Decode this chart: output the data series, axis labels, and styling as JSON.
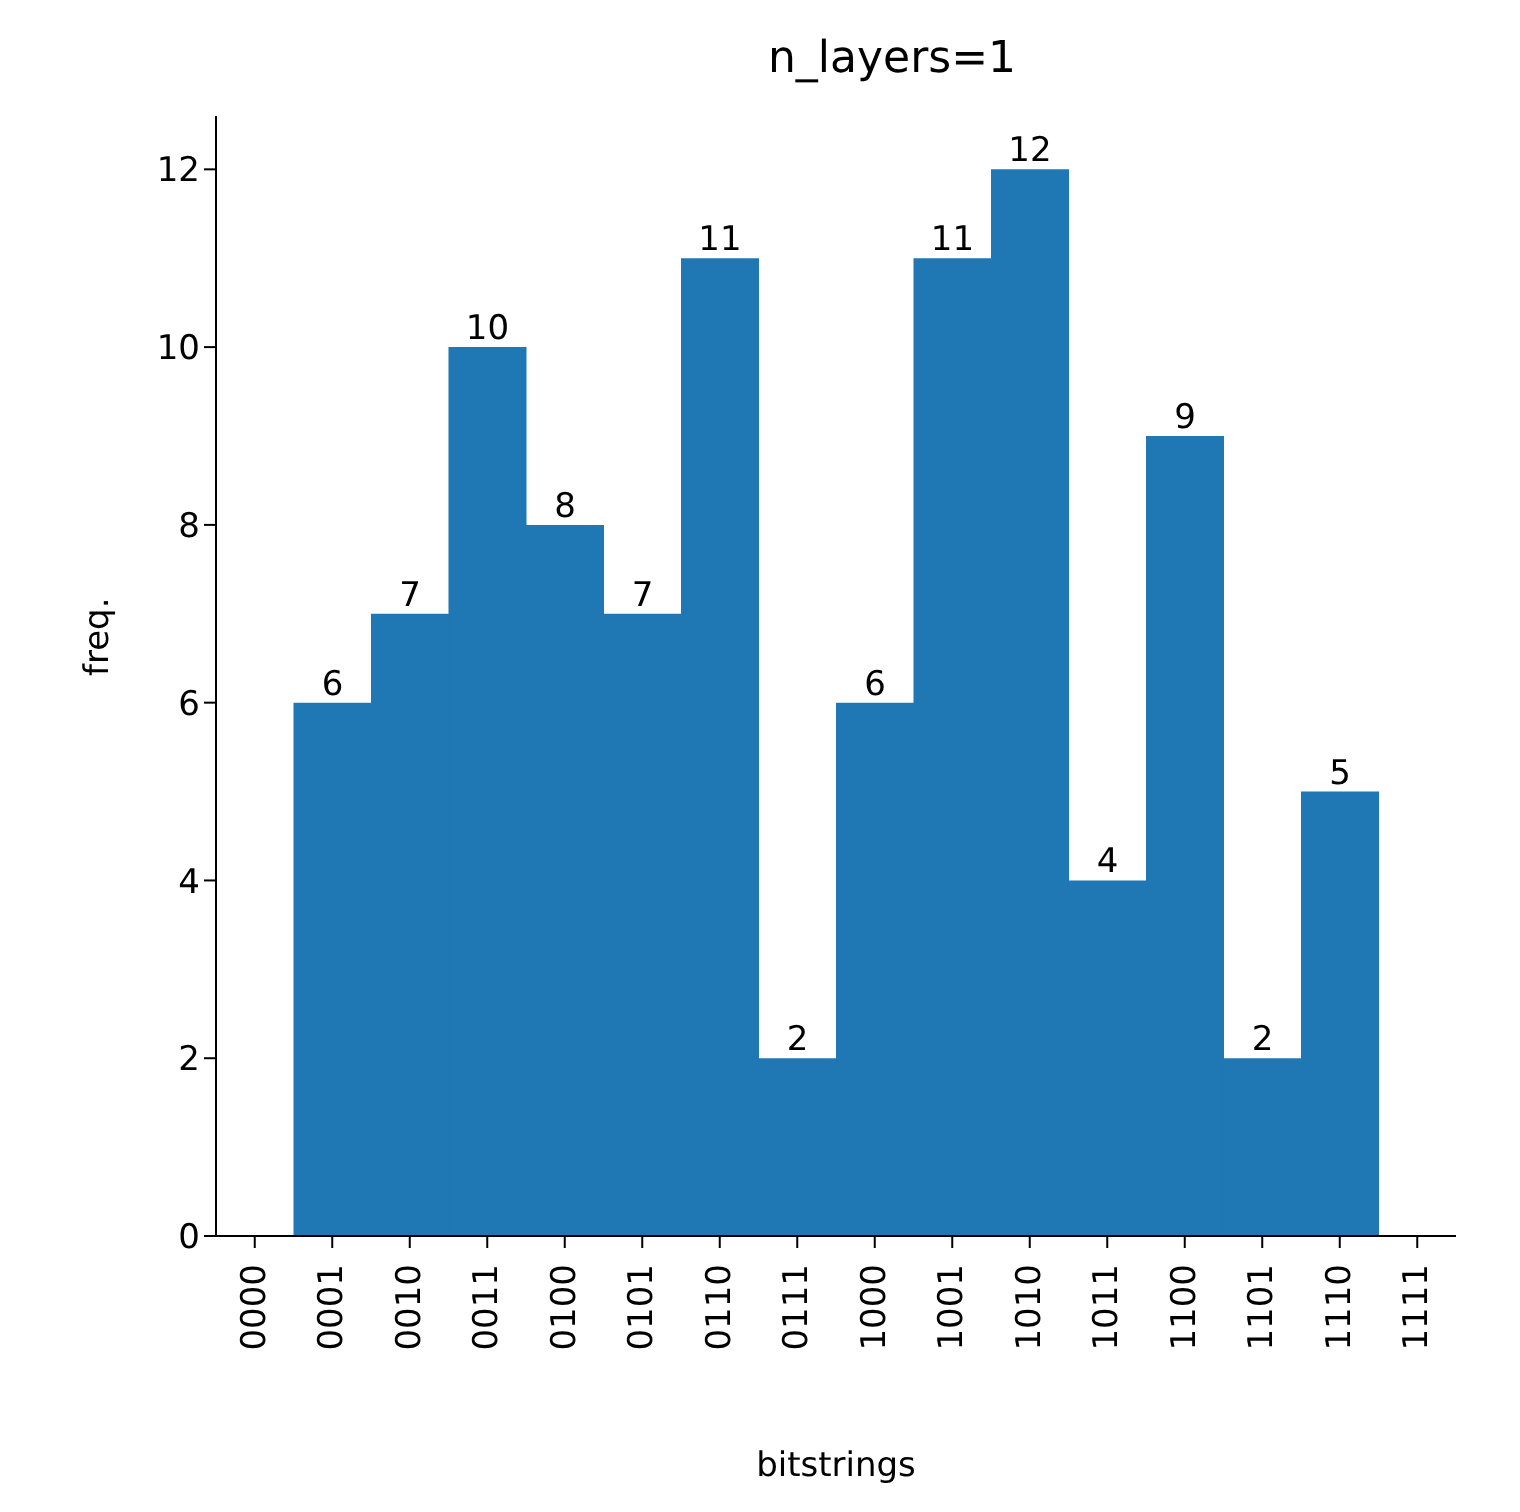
{
  "chart_data": {
    "type": "bar",
    "title": "n_layers=1",
    "xlabel": "bitstrings",
    "ylabel": "freq.",
    "categories": [
      "0000",
      "0001",
      "0010",
      "0011",
      "0100",
      "0101",
      "0110",
      "0111",
      "1000",
      "1001",
      "1010",
      "1011",
      "1100",
      "1101",
      "1110",
      "1111"
    ],
    "values": [
      0,
      6,
      7,
      10,
      8,
      7,
      11,
      2,
      6,
      11,
      12,
      4,
      9,
      2,
      5,
      0
    ],
    "value_labels": [
      null,
      "6",
      "7",
      "10",
      "8",
      "7",
      "11",
      "2",
      "6",
      "11",
      "12",
      "4",
      "9",
      "2",
      "5",
      null
    ],
    "color": "#1f77b4",
    "ylim": [
      0,
      12.6
    ],
    "yticks": [
      0,
      2,
      4,
      6,
      8,
      10,
      12
    ],
    "grid": false,
    "legend": false
  }
}
